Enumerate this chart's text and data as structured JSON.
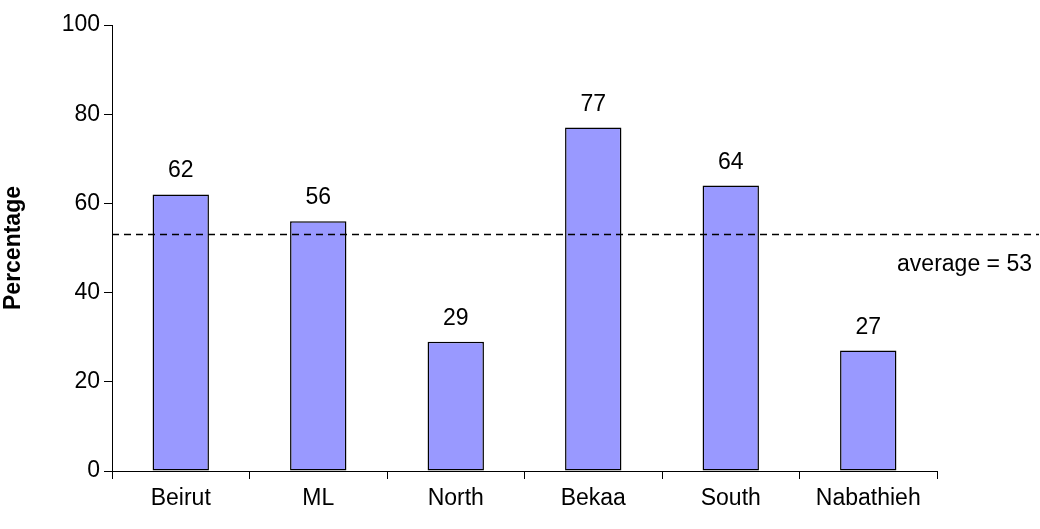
{
  "chart_data": {
    "type": "bar",
    "ylabel": "Percentage",
    "categories": [
      "Beirut",
      "ML",
      "North",
      "Bekaa",
      "South",
      "Nabathieh"
    ],
    "values": [
      62,
      56,
      29,
      77,
      64,
      27
    ],
    "color": "#9999ff",
    "ylim": [
      0,
      100
    ],
    "yticks": [
      0,
      20,
      40,
      60,
      80,
      100
    ],
    "grid": false,
    "legend": false,
    "data_labels": true,
    "ref_lines": [
      {
        "axis": "y",
        "value": 53,
        "label": "average = 53",
        "color": "#000000",
        "line_style": "dashed"
      }
    ]
  }
}
